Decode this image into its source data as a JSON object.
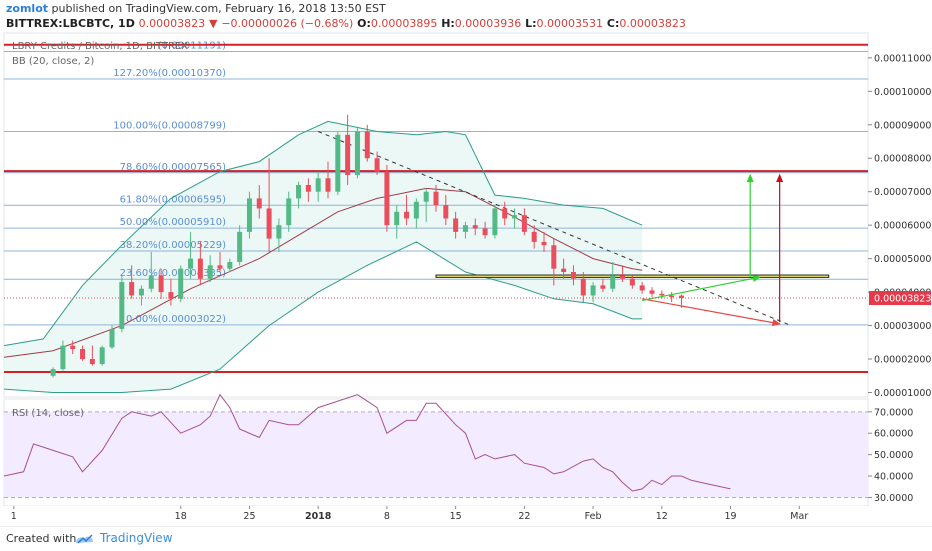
{
  "header": {
    "author": "zomlot",
    "published_text": "published on TradingView.com, February 16, 2018 13:50 EST",
    "symbol_line": "BITTREX:LBCBTC, 1D",
    "last": "0.00003823",
    "arrow": "▼",
    "change": "−0.00000026 (−0.68%)",
    "o_label": "O:",
    "o": "0.00003895",
    "h_label": "H:",
    "h": "0.00003936",
    "l_label": "L:",
    "l": "0.00003531",
    "c_label": "C:",
    "c": "0.00003823"
  },
  "footer": {
    "created_with": "Created with",
    "brand": "TradingView"
  },
  "chart_data": {
    "type": "candlestick",
    "title": "LBRY Credits / Bitcoin, 1D, BITTREX",
    "indicator_label": "BB (20, close, 2)",
    "rsi_label": "RSI (14, close)",
    "last_price_label": "0.00003823",
    "y_ticks": [
      "0.00011000",
      "0.00010000",
      "0.00009000",
      "0.00008000",
      "0.00007000",
      "0.00006000",
      "0.00005000",
      "0.00004000",
      "0.00003000",
      "0.00002000",
      "0.00001000"
    ],
    "y_tick_values": [
      0.00011,
      0.0001,
      9e-05,
      8e-05,
      7e-05,
      6e-05,
      5e-05,
      4e-05,
      3e-05,
      2e-05,
      1e-05
    ],
    "ylim": [
      8.65e-06,
      0.00011743
    ],
    "rsi_ticks": [
      "70.0000",
      "60.0000",
      "50.0000",
      "40.0000",
      "30.0000"
    ],
    "rsi_tick_values": [
      70,
      60,
      50,
      40,
      30
    ],
    "rsi_lim": [
      26,
      76
    ],
    "x_ticks": [
      "1",
      "18",
      "25",
      "2018",
      "8",
      "15",
      "22",
      "Feb",
      "12",
      "19",
      "Mar"
    ],
    "x_tick_positions": [
      -4,
      13,
      20,
      27,
      34,
      41,
      48,
      55,
      62,
      69,
      76
    ],
    "xlim": [
      -5,
      83
    ],
    "fib_levels": [
      {
        "label": "(0.00011191)",
        "value": 0.00011191
      },
      {
        "label": "127.20%(0.00010370)",
        "value": 0.0001037
      },
      {
        "label": "100.00%(0.00008799)",
        "value": 8.799e-05
      },
      {
        "label": "78.60%(0.00007565)",
        "value": 7.565e-05
      },
      {
        "label": "61.80%(0.00006595)",
        "value": 6.595e-05
      },
      {
        "label": "50.00%(0.00005910)",
        "value": 5.91e-05
      },
      {
        "label": "38.20%(0.00005229)",
        "value": 5.229e-05
      },
      {
        "label": "23.60%(0.00004385)",
        "value": 4.385e-05
      },
      {
        "label": "0.00%(0.00003022)",
        "value": 3.022e-05
      }
    ],
    "red_lines": [
      0.00011393,
      7.615e-05,
      1.613e-05
    ],
    "trendline": [
      [
        27,
        8.799e-05
      ],
      [
        75,
        3.022e-05
      ]
    ],
    "support_zone": [
      4.44e-05,
      4.51e-05
    ],
    "candles": [
      {
        "o": 1.5e-05,
        "h": 1.75e-05,
        "l": 1.45e-05,
        "c": 1.7e-05
      },
      {
        "o": 1.7e-05,
        "h": 2.55e-05,
        "l": 1.65e-05,
        "c": 2.4e-05
      },
      {
        "o": 2.4e-05,
        "h": 2.55e-05,
        "l": 2.15e-05,
        "c": 2.3e-05
      },
      {
        "o": 2.3e-05,
        "h": 2.4e-05,
        "l": 1.95e-05,
        "c": 2e-05
      },
      {
        "o": 2e-05,
        "h": 2.4e-05,
        "l": 1.8e-05,
        "c": 1.85e-05
      },
      {
        "o": 1.85e-05,
        "h": 2.4e-05,
        "l": 1.8e-05,
        "c": 2.35e-05
      },
      {
        "o": 2.35e-05,
        "h": 3e-05,
        "l": 2.3e-05,
        "c": 2.9e-05
      },
      {
        "o": 2.9e-05,
        "h": 4.5e-05,
        "l": 2.8e-05,
        "c": 4.3e-05
      },
      {
        "o": 4.3e-05,
        "h": 4.8e-05,
        "l": 3.8e-05,
        "c": 3.9e-05
      },
      {
        "o": 3.9e-05,
        "h": 4.2e-05,
        "l": 3.6e-05,
        "c": 4.1e-05
      },
      {
        "o": 4.1e-05,
        "h": 5.2e-05,
        "l": 4e-05,
        "c": 4.5e-05
      },
      {
        "o": 4.5e-05,
        "h": 4.7e-05,
        "l": 3.8e-05,
        "c": 4e-05
      },
      {
        "o": 4e-05,
        "h": 4.4e-05,
        "l": 3.6e-05,
        "c": 3.8e-05
      },
      {
        "o": 3.8e-05,
        "h": 4.8e-05,
        "l": 3.7e-05,
        "c": 4.7e-05
      },
      {
        "o": 4.7e-05,
        "h": 5.8e-05,
        "l": 4.4e-05,
        "c": 5e-05
      },
      {
        "o": 5e-05,
        "h": 5.5e-05,
        "l": 4.2e-05,
        "c": 4.4e-05
      },
      {
        "o": 4.4e-05,
        "h": 5.1e-05,
        "l": 4.3e-05,
        "c": 4.8e-05
      },
      {
        "o": 4.8e-05,
        "h": 5.2e-05,
        "l": 4.6e-05,
        "c": 4.7e-05
      },
      {
        "o": 4.7e-05,
        "h": 5e-05,
        "l": 4.6e-05,
        "c": 4.9e-05
      },
      {
        "o": 4.9e-05,
        "h": 6e-05,
        "l": 4.8e-05,
        "c": 5.8e-05
      },
      {
        "o": 5.8e-05,
        "h": 7e-05,
        "l": 5.6e-05,
        "c": 6.8e-05
      },
      {
        "o": 6.8e-05,
        "h": 7.2e-05,
        "l": 6.2e-05,
        "c": 6.5e-05
      },
      {
        "o": 6.5e-05,
        "h": 8e-05,
        "l": 5.2e-05,
        "c": 5.6e-05
      },
      {
        "o": 5.6e-05,
        "h": 6.2e-05,
        "l": 5.2e-05,
        "c": 6e-05
      },
      {
        "o": 6e-05,
        "h": 7e-05,
        "l": 5.8e-05,
        "c": 6.8e-05
      },
      {
        "o": 6.8e-05,
        "h": 7.3e-05,
        "l": 6.5e-05,
        "c": 7.2e-05
      },
      {
        "o": 7.2e-05,
        "h": 7.4e-05,
        "l": 6.7e-05,
        "c": 7e-05
      },
      {
        "o": 7e-05,
        "h": 7.6e-05,
        "l": 6.7e-05,
        "c": 7.4e-05
      },
      {
        "o": 7.4e-05,
        "h": 7.9e-05,
        "l": 6.8e-05,
        "c": 7e-05
      },
      {
        "o": 7e-05,
        "h": 8.8e-05,
        "l": 6.9e-05,
        "c": 8.7e-05
      },
      {
        "o": 8.7e-05,
        "h": 9.3e-05,
        "l": 7.2e-05,
        "c": 7.5e-05
      },
      {
        "o": 7.5e-05,
        "h": 8.9e-05,
        "l": 7.4e-05,
        "c": 8.8e-05
      },
      {
        "o": 8.8e-05,
        "h": 9e-05,
        "l": 7.9e-05,
        "c": 8e-05
      },
      {
        "o": 8e-05,
        "h": 8.2e-05,
        "l": 7.5e-05,
        "c": 7.6e-05
      },
      {
        "o": 7.6e-05,
        "h": 7.8e-05,
        "l": 5.8e-05,
        "c": 6e-05
      },
      {
        "o": 6e-05,
        "h": 6.6e-05,
        "l": 5.6e-05,
        "c": 6.4e-05
      },
      {
        "o": 6.4e-05,
        "h": 6.9e-05,
        "l": 6e-05,
        "c": 6.2e-05
      },
      {
        "o": 6.2e-05,
        "h": 6.8e-05,
        "l": 5.9e-05,
        "c": 6.7e-05
      },
      {
        "o": 6.7e-05,
        "h": 7.1e-05,
        "l": 6.1e-05,
        "c": 7e-05
      },
      {
        "o": 7e-05,
        "h": 7.2e-05,
        "l": 6.4e-05,
        "c": 6.6e-05
      },
      {
        "o": 6.6e-05,
        "h": 6.9e-05,
        "l": 6e-05,
        "c": 6.2e-05
      },
      {
        "o": 6.2e-05,
        "h": 6.4e-05,
        "l": 5.6e-05,
        "c": 5.8e-05
      },
      {
        "o": 5.8e-05,
        "h": 6.1e-05,
        "l": 5.6e-05,
        "c": 6e-05
      },
      {
        "o": 6e-05,
        "h": 6.2e-05,
        "l": 5.7e-05,
        "c": 5.9e-05
      },
      {
        "o": 5.9e-05,
        "h": 6.1e-05,
        "l": 5.6e-05,
        "c": 5.7e-05
      },
      {
        "o": 5.7e-05,
        "h": 6.6e-05,
        "l": 5.6e-05,
        "c": 6.5e-05
      },
      {
        "o": 6.5e-05,
        "h": 6.7e-05,
        "l": 6e-05,
        "c": 6.2e-05
      },
      {
        "o": 6.2e-05,
        "h": 6.5e-05,
        "l": 5.9e-05,
        "c": 6.3e-05
      },
      {
        "o": 6.3e-05,
        "h": 6.5e-05,
        "l": 5.7e-05,
        "c": 5.8e-05
      },
      {
        "o": 5.8e-05,
        "h": 6e-05,
        "l": 5.3e-05,
        "c": 5.5e-05
      },
      {
        "o": 5.5e-05,
        "h": 5.8e-05,
        "l": 5.2e-05,
        "c": 5.4e-05
      },
      {
        "o": 5.4e-05,
        "h": 5.6e-05,
        "l": 4.2e-05,
        "c": 4.7e-05
      },
      {
        "o": 4.7e-05,
        "h": 5e-05,
        "l": 4.4e-05,
        "c": 4.6e-05
      },
      {
        "o": 4.6e-05,
        "h": 4.8e-05,
        "l": 4.2e-05,
        "c": 4.4e-05
      },
      {
        "o": 4.4e-05,
        "h": 4.6e-05,
        "l": 3.7e-05,
        "c": 3.9e-05
      },
      {
        "o": 3.9e-05,
        "h": 4.3e-05,
        "l": 3.7e-05,
        "c": 4.2e-05
      },
      {
        "o": 4.2e-05,
        "h": 4.4e-05,
        "l": 4e-05,
        "c": 4.1e-05
      },
      {
        "o": 4.1e-05,
        "h": 4.9e-05,
        "l": 4e-05,
        "c": 4.5e-05
      },
      {
        "o": 4.5e-05,
        "h": 4.8e-05,
        "l": 4.3e-05,
        "c": 4.4e-05
      },
      {
        "o": 4.4e-05,
        "h": 4.5e-05,
        "l": 4.1e-05,
        "c": 4.2e-05
      },
      {
        "o": 4.2e-05,
        "h": 4.3e-05,
        "l": 3.95e-05,
        "c": 4.05e-05
      },
      {
        "o": 4.05e-05,
        "h": 4.15e-05,
        "l": 3.85e-05,
        "c": 3.95e-05
      },
      {
        "o": 3.95e-05,
        "h": 4.05e-05,
        "l": 3.8e-05,
        "c": 3.9e-05
      },
      {
        "o": 3.9e-05,
        "h": 4e-05,
        "l": 3.7e-05,
        "c": 3.85e-05
      },
      {
        "o": 3.895e-05,
        "h": 3.936e-05,
        "l": 3.531e-05,
        "c": 3.823e-05
      }
    ],
    "bb_basis": [
      [
        -5,
        2.05e-05
      ],
      [
        0,
        2.25e-05
      ],
      [
        7,
        3e-05
      ],
      [
        14,
        4.1e-05
      ],
      [
        21,
        5e-05
      ],
      [
        25,
        5.7e-05
      ],
      [
        29,
        6.4e-05
      ],
      [
        33,
        6.8e-05
      ],
      [
        38,
        7.1e-05
      ],
      [
        42,
        7e-05
      ],
      [
        46,
        6.4e-05
      ],
      [
        51,
        5.6e-05
      ],
      [
        55,
        5e-05
      ],
      [
        59,
        4.7e-05
      ],
      [
        60,
        4.65e-05
      ]
    ],
    "bb_upper": [
      [
        -5,
        2.4e-05
      ],
      [
        -1,
        2.6e-05
      ],
      [
        3,
        4.2e-05
      ],
      [
        7,
        5.4e-05
      ],
      [
        12,
        6.8e-05
      ],
      [
        17,
        7.6e-05
      ],
      [
        21,
        7.9e-05
      ],
      [
        25,
        8.7e-05
      ],
      [
        28,
        9.1e-05
      ],
      [
        33,
        8.8e-05
      ],
      [
        37,
        8.7e-05
      ],
      [
        40,
        8.8e-05
      ],
      [
        42,
        8.7e-05
      ],
      [
        45,
        6.9e-05
      ],
      [
        48,
        6.8e-05
      ],
      [
        52,
        6.6e-05
      ],
      [
        56,
        6.5e-05
      ],
      [
        60,
        6e-05
      ]
    ],
    "bb_lower": [
      [
        -5,
        1.1e-05
      ],
      [
        0,
        1e-05
      ],
      [
        7,
        1e-05
      ],
      [
        12,
        1.1e-05
      ],
      [
        17,
        1.7e-05
      ],
      [
        22,
        3e-05
      ],
      [
        27,
        4e-05
      ],
      [
        32,
        4.8e-05
      ],
      [
        37,
        5.5e-05
      ],
      [
        42,
        4.6e-05
      ],
      [
        47,
        4.2e-05
      ],
      [
        51,
        3.8e-05
      ],
      [
        55,
        3.65e-05
      ],
      [
        59,
        3.2e-05
      ],
      [
        60,
        3.2e-05
      ]
    ],
    "rsi_values": [
      [
        -5,
        40
      ],
      [
        -3,
        42
      ],
      [
        -2,
        55
      ],
      [
        0,
        52
      ],
      [
        2,
        49
      ],
      [
        3,
        42
      ],
      [
        5,
        52
      ],
      [
        7,
        67
      ],
      [
        8,
        70
      ],
      [
        10,
        68
      ],
      [
        11,
        70
      ],
      [
        13,
        60
      ],
      [
        15,
        64
      ],
      [
        16,
        68
      ],
      [
        17,
        78
      ],
      [
        18,
        72
      ],
      [
        19,
        62
      ],
      [
        21,
        58
      ],
      [
        22,
        66
      ],
      [
        24,
        64
      ],
      [
        25,
        64
      ],
      [
        27,
        72
      ],
      [
        29,
        75
      ],
      [
        31,
        78
      ],
      [
        33,
        72
      ],
      [
        34,
        60
      ],
      [
        36,
        66
      ],
      [
        37,
        66
      ],
      [
        38,
        74
      ],
      [
        39,
        74
      ],
      [
        41,
        64
      ],
      [
        42,
        60
      ],
      [
        43,
        48
      ],
      [
        44,
        50
      ],
      [
        45,
        48
      ],
      [
        47,
        50
      ],
      [
        48,
        46
      ],
      [
        50,
        44
      ],
      [
        51,
        41
      ],
      [
        52,
        42
      ],
      [
        54,
        47
      ],
      [
        55,
        48
      ],
      [
        56,
        44
      ],
      [
        57,
        42
      ],
      [
        58,
        37
      ],
      [
        59,
        33
      ],
      [
        60,
        34
      ],
      [
        61,
        38
      ],
      [
        62,
        36
      ],
      [
        63,
        40
      ],
      [
        64,
        40
      ],
      [
        65,
        38
      ],
      [
        66,
        37
      ],
      [
        67,
        36
      ],
      [
        68,
        35
      ],
      [
        69,
        34
      ]
    ],
    "arrows": [
      {
        "color": "#e84545",
        "from": [
          60,
          3.8e-05
        ],
        "to": [
          74,
          3.05e-05
        ]
      },
      {
        "color": "#2fd02f",
        "from": [
          60,
          3.75e-05
        ],
        "to": [
          72,
          4.45e-05
        ]
      },
      {
        "color": "#2fd02f",
        "from": [
          71,
          4.45e-05
        ],
        "to": [
          71,
          7.5e-05
        ]
      },
      {
        "color": "#c8101a",
        "from": [
          74,
          3.1e-05
        ],
        "to": [
          74,
          7.5e-05
        ]
      }
    ]
  }
}
